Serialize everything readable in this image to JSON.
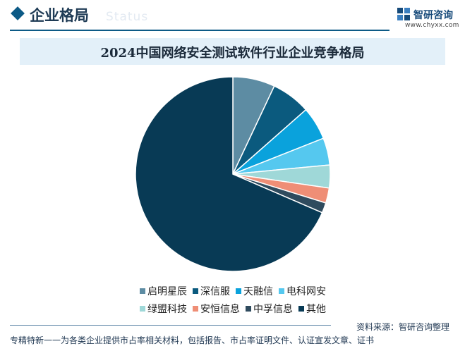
{
  "header": {
    "section_title": "企业格局",
    "section_title_en": "Status",
    "logo_name": "智研咨询",
    "logo_url": "www.chyxx.com"
  },
  "chart_data": {
    "type": "pie",
    "title": "2024中国网络安全测试软件行业企业竞争格局",
    "start_angle_deg": 0,
    "direction": "clockwise",
    "slices": [
      {
        "name": "启明星辰",
        "value": 7.0,
        "color": "#5d8ca3"
      },
      {
        "name": "深信服",
        "value": 6.5,
        "color": "#0b5a7e"
      },
      {
        "name": "天融信",
        "value": 5.5,
        "color": "#0aa2dc"
      },
      {
        "name": "电科网安",
        "value": 4.5,
        "color": "#55c8ef"
      },
      {
        "name": "绿盟科技",
        "value": 3.8,
        "color": "#9fd8d8"
      },
      {
        "name": "安恒信息",
        "value": 2.5,
        "color": "#ef8e76"
      },
      {
        "name": "中孚信息",
        "value": 1.7,
        "color": "#2f4b5e"
      },
      {
        "name": "其他",
        "value": 68.5,
        "color": "#083a55"
      }
    ],
    "legend": {
      "placement": "bottom",
      "row1": [
        0,
        1,
        2,
        3
      ],
      "row2": [
        4,
        5,
        6,
        7
      ]
    }
  },
  "footer": {
    "source": "资料来源：智研咨询整理",
    "note": "专精特新一一为各类企业提供市占率相关材料，包括报告、市占率证明文件、认证宣发文章、证书"
  }
}
